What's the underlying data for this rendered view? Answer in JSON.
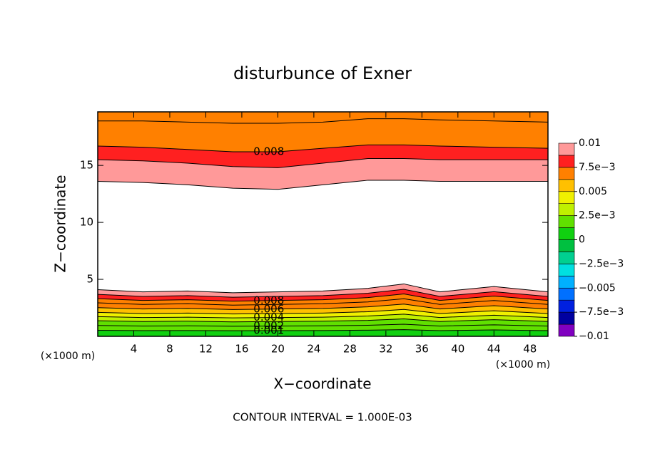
{
  "chart_data": {
    "type": "contour",
    "title": "disturbunce of Exner",
    "xlabel": "X−coordinate",
    "ylabel": "Z−coordinate",
    "x_unit": "(×1000 m)",
    "footer": "CONTOUR INTERVAL = 1.000E-03",
    "xlim": [
      0,
      50
    ],
    "ylim": [
      0,
      19.7
    ],
    "xticks": [
      4,
      8,
      12,
      16,
      20,
      24,
      28,
      32,
      36,
      40,
      44,
      48
    ],
    "yticks": [
      5,
      10,
      15
    ],
    "x": [
      0,
      5,
      10,
      15,
      20,
      25,
      30,
      34,
      38,
      44,
      50
    ],
    "lower_contours": [
      {
        "level": 0.001,
        "labeled": true,
        "z": [
          0.53,
          0.5,
          0.51,
          0.49,
          0.5,
          0.51,
          0.54,
          0.59,
          0.5,
          0.56,
          0.5
        ]
      },
      {
        "level": 0.002,
        "labeled": true,
        "z": [
          0.95,
          0.9,
          0.92,
          0.88,
          0.9,
          0.92,
          0.97,
          1.06,
          0.9,
          1.01,
          0.9
        ]
      },
      {
        "level": 0.003,
        "labeled": false,
        "z": [
          1.37,
          1.3,
          1.33,
          1.27,
          1.3,
          1.33,
          1.4,
          1.53,
          1.3,
          1.46,
          1.3
        ]
      },
      {
        "level": 0.004,
        "labeled": true,
        "z": [
          1.73,
          1.65,
          1.68,
          1.62,
          1.65,
          1.68,
          1.78,
          1.95,
          1.65,
          1.85,
          1.65
        ]
      },
      {
        "level": 0.005,
        "labeled": false,
        "z": [
          2.1,
          2.0,
          2.04,
          1.96,
          2.0,
          2.04,
          2.16,
          2.36,
          2.0,
          2.24,
          2.0
        ]
      },
      {
        "level": 0.006,
        "labeled": true,
        "z": [
          2.52,
          2.4,
          2.45,
          2.35,
          2.4,
          2.45,
          2.59,
          2.83,
          2.4,
          2.69,
          2.4
        ]
      },
      {
        "level": 0.007,
        "labeled": false,
        "z": [
          2.94,
          2.8,
          2.86,
          2.74,
          2.8,
          2.86,
          3.02,
          3.3,
          2.8,
          3.14,
          2.8
        ]
      },
      {
        "level": 0.008,
        "labeled": true,
        "z": [
          3.31,
          3.15,
          3.21,
          3.09,
          3.15,
          3.21,
          3.4,
          3.72,
          3.15,
          3.53,
          3.15
        ]
      },
      {
        "level": 0.009,
        "labeled": false,
        "z": [
          3.68,
          3.5,
          3.57,
          3.43,
          3.5,
          3.57,
          3.78,
          4.13,
          3.5,
          3.92,
          3.5
        ]
      },
      {
        "level": 0.01,
        "labeled": false,
        "z": [
          4.1,
          3.9,
          3.98,
          3.82,
          3.9,
          3.98,
          4.21,
          4.6,
          3.9,
          4.37,
          3.9
        ]
      }
    ],
    "upper_contours": [
      {
        "level": 0.01,
        "labeled": false,
        "z": [
          13.6,
          13.5,
          13.3,
          13.0,
          12.9,
          13.3,
          13.7,
          13.7,
          13.6,
          13.6,
          13.6
        ]
      },
      {
        "level": 0.009,
        "labeled": false,
        "z": [
          15.5,
          15.4,
          15.2,
          14.9,
          14.8,
          15.2,
          15.6,
          15.6,
          15.5,
          15.5,
          15.5
        ]
      },
      {
        "level": 0.008,
        "labeled": true,
        "z": [
          16.7,
          16.6,
          16.4,
          16.2,
          16.2,
          16.5,
          16.8,
          16.8,
          16.7,
          16.6,
          16.5
        ]
      },
      {
        "level": 0.007,
        "labeled": false,
        "z": [
          18.9,
          18.9,
          18.8,
          18.7,
          18.7,
          18.8,
          19.1,
          19.1,
          19.0,
          18.9,
          18.8
        ]
      }
    ],
    "colorbar": {
      "levels": [
        -0.01,
        -0.00875,
        -0.0075,
        -0.00625,
        -0.005,
        -0.00375,
        -0.0025,
        -0.00125,
        0,
        0.00125,
        0.0025,
        0.00375,
        0.005,
        0.00625,
        0.0075,
        0.00875,
        0.01
      ],
      "colors": [
        "#8000c0",
        "#0000a0",
        "#0020e0",
        "#0070ff",
        "#00b0ff",
        "#00e0e0",
        "#00d090",
        "#00c040",
        "#10d010",
        "#60e000",
        "#c0f000",
        "#f0f000",
        "#ffc000",
        "#ff8000",
        "#ff2020",
        "#ff9999"
      ],
      "ticks": [
        {
          "value": 0.01,
          "label": "0.01"
        },
        {
          "value": 0.0075,
          "label": "7.5e−3"
        },
        {
          "value": 0.005,
          "label": "0.005"
        },
        {
          "value": 0.0025,
          "label": "2.5e−3"
        },
        0,
        {
          "value": -0.0025,
          "label": "−2.5e−3"
        },
        {
          "value": -0.005,
          "label": "−0.005"
        },
        {
          "value": -0.0075,
          "label": "−7.5e−3"
        },
        {
          "value": -0.01,
          "label": "−0.01"
        }
      ]
    }
  }
}
